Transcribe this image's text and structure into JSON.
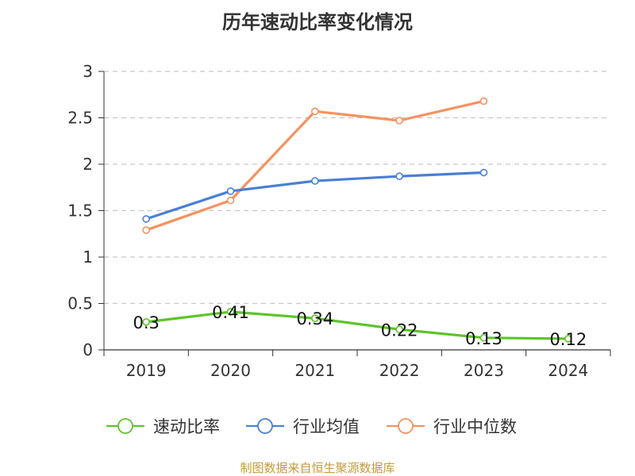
{
  "title": "历年速动比率变化情况",
  "source": "制图数据来自恒生聚源数据库",
  "chart_data": {
    "type": "line",
    "title": "历年速动比率变化情况",
    "categories": [
      "2019",
      "2020",
      "2021",
      "2022",
      "2023",
      "2024"
    ],
    "ylim": [
      0,
      3
    ],
    "yticks": [
      "0",
      "0.5",
      "1",
      "1.5",
      "2",
      "2.5",
      "3"
    ],
    "grid": true,
    "legend_position": "bottom",
    "series": [
      {
        "name": "速动比率",
        "color": "#5dc42a",
        "values": [
          0.3,
          0.41,
          0.34,
          0.22,
          0.13,
          0.12
        ],
        "labels": [
          "0.3",
          "0.41",
          "0.34",
          "0.22",
          "0.13",
          "0.12"
        ]
      },
      {
        "name": "行业均值",
        "color": "#4a7fd6",
        "values": [
          1.41,
          1.71,
          1.82,
          1.87,
          1.91,
          null
        ]
      },
      {
        "name": "行业中位数",
        "color": "#f5925f",
        "values": [
          1.29,
          1.61,
          2.57,
          2.47,
          2.68,
          null
        ]
      }
    ]
  }
}
